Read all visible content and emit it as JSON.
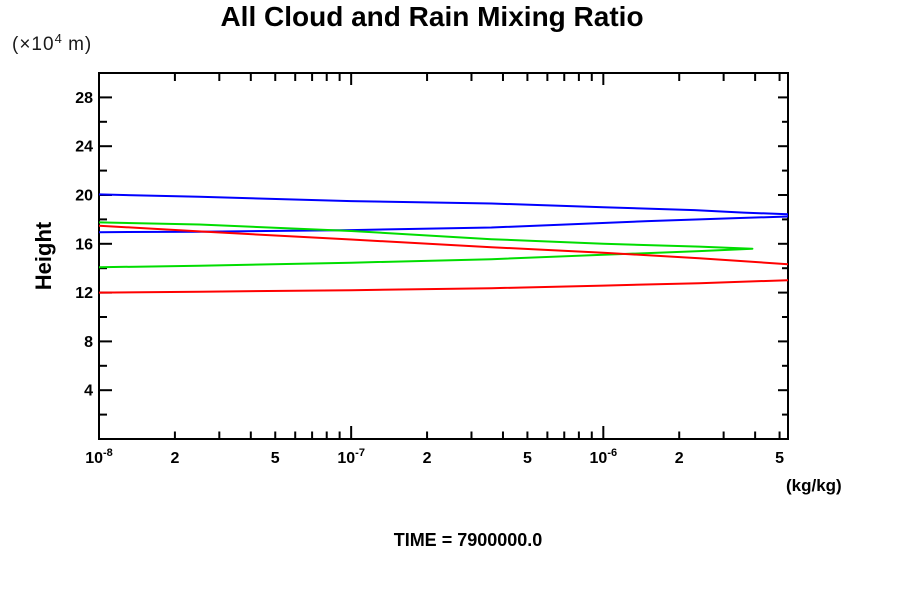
{
  "header": {
    "title": "All Cloud and Rain Mixing Ratio"
  },
  "y_axis": {
    "title": "Height",
    "unit_prefix": "(×10",
    "unit_exp": "4",
    "unit_suffix": " m)"
  },
  "x_axis": {
    "unit_label": "(kg/kg)"
  },
  "footer": {
    "time_label": "TIME = 7900000.0"
  },
  "chart_data": {
    "type": "line",
    "title": "All Cloud and Rain Mixing Ratio",
    "xlabel": "(kg/kg)",
    "ylabel": "Height (x10^4 m)",
    "x_scale": "log",
    "xlim": [
      1e-08,
      5.4e-06
    ],
    "ylim": [
      0,
      30
    ],
    "grid": false,
    "legend": "none",
    "frame": "box",
    "axis_color": "#000000",
    "y_ticks": {
      "minor_step": 2,
      "major_step": 4,
      "labeled_values": [
        4,
        8,
        12,
        16,
        20,
        24,
        28
      ]
    },
    "x_ticks": [
      {
        "value": 1e-08,
        "label": "10",
        "exp": "-8",
        "kind": "major"
      },
      {
        "value": 2e-08,
        "label": "2",
        "kind": "mid"
      },
      {
        "value": 3e-08,
        "kind": "minor"
      },
      {
        "value": 4e-08,
        "kind": "minor"
      },
      {
        "value": 5e-08,
        "label": "5",
        "kind": "mid"
      },
      {
        "value": 6e-08,
        "kind": "minor"
      },
      {
        "value": 7e-08,
        "kind": "minor"
      },
      {
        "value": 8e-08,
        "kind": "minor"
      },
      {
        "value": 9e-08,
        "kind": "minor"
      },
      {
        "value": 1e-07,
        "label": "10",
        "exp": "-7",
        "kind": "major"
      },
      {
        "value": 2e-07,
        "label": "2",
        "kind": "mid"
      },
      {
        "value": 3e-07,
        "kind": "minor"
      },
      {
        "value": 4e-07,
        "kind": "minor"
      },
      {
        "value": 5e-07,
        "label": "5",
        "kind": "mid"
      },
      {
        "value": 6e-07,
        "kind": "minor"
      },
      {
        "value": 7e-07,
        "kind": "minor"
      },
      {
        "value": 8e-07,
        "kind": "minor"
      },
      {
        "value": 9e-07,
        "kind": "minor"
      },
      {
        "value": 1e-06,
        "label": "10",
        "exp": "-6",
        "kind": "major"
      },
      {
        "value": 2e-06,
        "label": "2",
        "kind": "mid"
      },
      {
        "value": 3e-06,
        "kind": "minor"
      },
      {
        "value": 4e-06,
        "kind": "minor"
      },
      {
        "value": 5e-06,
        "label": "5",
        "kind": "mid"
      }
    ],
    "series": [
      {
        "name": "blue-profile",
        "color": "#0000ff",
        "segments": [
          [
            [
              1e-08,
              20.05
            ],
            [
              2.5e-08,
              19.85
            ],
            [
              1e-07,
              19.5
            ],
            [
              3.6e-07,
              19.3
            ],
            [
              1e-06,
              19.0
            ],
            [
              2.3e-06,
              18.76
            ],
            [
              3.6e-06,
              18.56
            ],
            [
              5.4e-06,
              18.42
            ],
            [
              5.4e-06,
              18.24
            ],
            [
              3.6e-06,
              18.12
            ],
            [
              1.5e-06,
              17.86
            ],
            [
              3.6e-07,
              17.34
            ],
            [
              1e-07,
              17.12
            ],
            [
              2.5e-08,
              16.99
            ],
            [
              1e-08,
              16.95
            ]
          ]
        ]
      },
      {
        "name": "green-profile",
        "color": "#00dd00",
        "segments": [
          [
            [
              1e-08,
              17.75
            ],
            [
              2.5e-08,
              17.58
            ],
            [
              1e-07,
              17.05
            ],
            [
              3.6e-07,
              16.38
            ],
            [
              1e-06,
              16.0
            ],
            [
              2.4e-06,
              15.77
            ],
            [
              3.9e-06,
              15.6
            ],
            [
              2.4e-06,
              15.4
            ],
            [
              1e-06,
              15.1
            ],
            [
              3.6e-07,
              14.74
            ],
            [
              1e-07,
              14.45
            ],
            [
              2.5e-08,
              14.2
            ],
            [
              1.4e-08,
              14.12
            ],
            [
              1e-08,
              14.08
            ]
          ]
        ]
      },
      {
        "name": "red-profile",
        "color": "#ff0000",
        "segments": [
          [
            [
              1e-08,
              17.48
            ],
            [
              2.5e-08,
              17.02
            ],
            [
              1e-07,
              16.35
            ],
            [
              3.6e-07,
              15.72
            ],
            [
              1e-06,
              15.27
            ],
            [
              2.4e-06,
              14.82
            ],
            [
              5.4e-06,
              14.33
            ]
          ],
          [
            [
              5.4e-06,
              13.02
            ],
            [
              2.4e-06,
              12.77
            ],
            [
              1e-06,
              12.57
            ],
            [
              3.6e-07,
              12.36
            ],
            [
              1e-07,
              12.2
            ],
            [
              2.5e-08,
              12.07
            ],
            [
              1e-08,
              12.0
            ]
          ]
        ]
      }
    ]
  }
}
